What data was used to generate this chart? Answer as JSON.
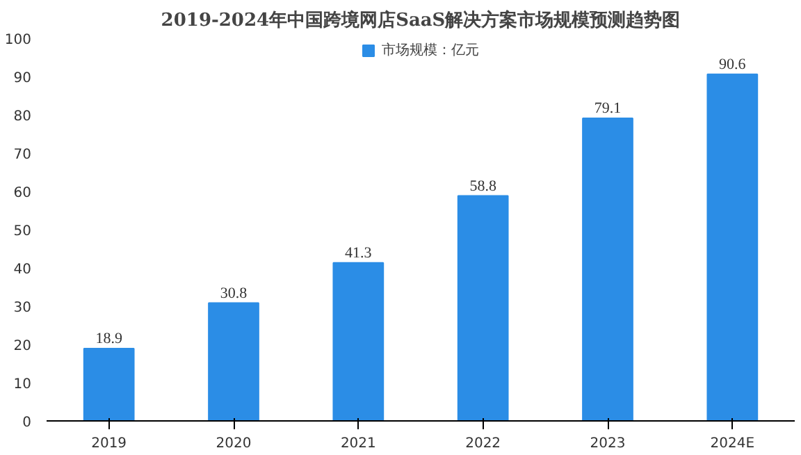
{
  "chart_data": {
    "type": "bar",
    "title": "2019-2024年中国跨境网店SaaS解决方案市场规模预测趋势图",
    "categories": [
      "2019",
      "2020",
      "2021",
      "2022",
      "2023",
      "2024E"
    ],
    "series": [
      {
        "name": "市场规模：亿元",
        "color": "#2b8de6",
        "values": [
          18.9,
          30.8,
          41.3,
          58.8,
          79.1,
          90.6
        ]
      }
    ],
    "ylim": [
      0,
      100
    ],
    "yticks": [
      0,
      10,
      20,
      30,
      40,
      50,
      60,
      70,
      80,
      90,
      100
    ],
    "grid": false,
    "legend": "top",
    "data_labels": true
  }
}
